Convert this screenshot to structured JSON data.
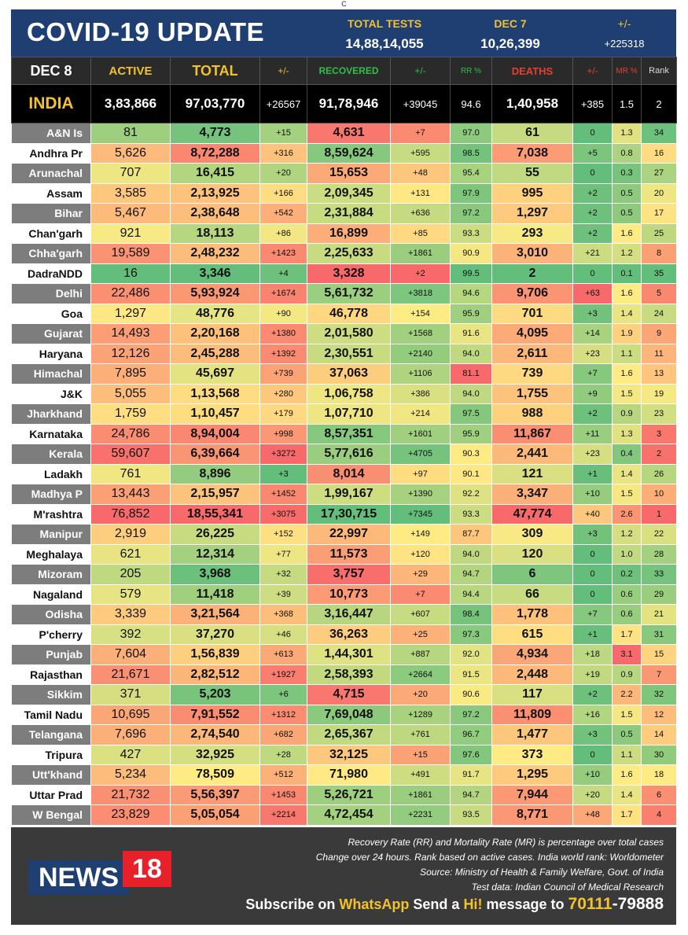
{
  "top_mark": "C",
  "banner": {
    "title": "COVID-19 UPDATE",
    "total_tests_label": "TOTAL TESTS",
    "total_tests_value": "14,88,14,055",
    "prev_date_label": "DEC 7",
    "prev_date_value": "10,26,399",
    "change_label": "+/-",
    "change_value": "+225318"
  },
  "header": {
    "date": "DEC 8",
    "active": "ACTIVE",
    "total": "TOTAL",
    "total_change": "+/-",
    "recovered": "RECOVERED",
    "recovered_change": "+/-",
    "rr": "RR %",
    "deaths": "DEATHS",
    "deaths_change": "+/-",
    "mr": "MR %",
    "rank": "Rank"
  },
  "india": {
    "name": "INDIA",
    "active": "3,83,866",
    "total": "97,03,770",
    "total_change": "+26567",
    "recovered": "91,78,946",
    "recovered_change": "+39045",
    "rr": "94.6",
    "deaths": "1,40,958",
    "deaths_change": "+385",
    "mr": "1.5",
    "rank": "2"
  },
  "states": [
    {
      "name": "A&N Is",
      "active": "81",
      "total": "4,773",
      "tc": "+15",
      "rec": "4,631",
      "rc": "+7",
      "rr": "97.0",
      "deaths": "61",
      "dc": "0",
      "mr": "1.3",
      "rank": "34"
    },
    {
      "name": "Andhra Pr",
      "active": "5,626",
      "total": "8,72,288",
      "tc": "+316",
      "rec": "8,59,624",
      "rc": "+595",
      "rr": "98.5",
      "deaths": "7,038",
      "dc": "+5",
      "mr": "0.8",
      "rank": "16"
    },
    {
      "name": "Arunachal",
      "active": "707",
      "total": "16,415",
      "tc": "+20",
      "rec": "15,653",
      "rc": "+48",
      "rr": "95.4",
      "deaths": "55",
      "dc": "0",
      "mr": "0.3",
      "rank": "27"
    },
    {
      "name": "Assam",
      "active": "3,585",
      "total": "2,13,925",
      "tc": "+166",
      "rec": "2,09,345",
      "rc": "+131",
      "rr": "97.9",
      "deaths": "995",
      "dc": "+2",
      "mr": "0.5",
      "rank": "20"
    },
    {
      "name": "Bihar",
      "active": "5,467",
      "total": "2,38,648",
      "tc": "+542",
      "rec": "2,31,884",
      "rc": "+636",
      "rr": "97.2",
      "deaths": "1,297",
      "dc": "+2",
      "mr": "0.5",
      "rank": "17"
    },
    {
      "name": "Chan'garh",
      "active": "921",
      "total": "18,113",
      "tc": "+86",
      "rec": "16,899",
      "rc": "+85",
      "rr": "93.3",
      "deaths": "293",
      "dc": "+2",
      "mr": "1.6",
      "rank": "25"
    },
    {
      "name": "Chha'garh",
      "active": "19,589",
      "total": "2,48,232",
      "tc": "+1423",
      "rec": "2,25,633",
      "rc": "+1861",
      "rr": "90.9",
      "deaths": "3,010",
      "dc": "+21",
      "mr": "1.2",
      "rank": "8"
    },
    {
      "name": "DadraNDD",
      "active": "16",
      "total": "3,346",
      "tc": "+4",
      "rec": "3,328",
      "rc": "+2",
      "rr": "99.5",
      "deaths": "2",
      "dc": "0",
      "mr": "0.1",
      "rank": "35"
    },
    {
      "name": "Delhi",
      "active": "22,486",
      "total": "5,93,924",
      "tc": "+1674",
      "rec": "5,61,732",
      "rc": "+3818",
      "rr": "94.6",
      "deaths": "9,706",
      "dc": "+63",
      "mr": "1.6",
      "rank": "5"
    },
    {
      "name": "Goa",
      "active": "1,297",
      "total": "48,776",
      "tc": "+90",
      "rec": "46,778",
      "rc": "+154",
      "rr": "95.9",
      "deaths": "701",
      "dc": "+3",
      "mr": "1.4",
      "rank": "24"
    },
    {
      "name": "Gujarat",
      "active": "14,493",
      "total": "2,20,168",
      "tc": "+1380",
      "rec": "2,01,580",
      "rc": "+1568",
      "rr": "91.6",
      "deaths": "4,095",
      "dc": "+14",
      "mr": "1.9",
      "rank": "9"
    },
    {
      "name": "Haryana",
      "active": "12,126",
      "total": "2,45,288",
      "tc": "+1392",
      "rec": "2,30,551",
      "rc": "+2140",
      "rr": "94.0",
      "deaths": "2,611",
      "dc": "+23",
      "mr": "1.1",
      "rank": "11"
    },
    {
      "name": "Himachal",
      "active": "7,895",
      "total": "45,697",
      "tc": "+739",
      "rec": "37,063",
      "rc": "+1106",
      "rr": "81.1",
      "deaths": "739",
      "dc": "+7",
      "mr": "1.6",
      "rank": "13"
    },
    {
      "name": "J&K",
      "active": "5,055",
      "total": "1,13,568",
      "tc": "+280",
      "rec": "1,06,758",
      "rc": "+386",
      "rr": "94.0",
      "deaths": "1,755",
      "dc": "+9",
      "mr": "1.5",
      "rank": "19"
    },
    {
      "name": "Jharkhand",
      "active": "1,759",
      "total": "1,10,457",
      "tc": "+179",
      "rec": "1,07,710",
      "rc": "+214",
      "rr": "97.5",
      "deaths": "988",
      "dc": "+2",
      "mr": "0.9",
      "rank": "23"
    },
    {
      "name": "Karnataka",
      "active": "24,786",
      "total": "8,94,004",
      "tc": "+998",
      "rec": "8,57,351",
      "rc": "+1601",
      "rr": "95.9",
      "deaths": "11,867",
      "dc": "+11",
      "mr": "1.3",
      "rank": "3"
    },
    {
      "name": "Kerala",
      "active": "59,607",
      "total": "6,39,664",
      "tc": "+3272",
      "rec": "5,77,616",
      "rc": "+4705",
      "rr": "90.3",
      "deaths": "2,441",
      "dc": "+23",
      "mr": "0.4",
      "rank": "2"
    },
    {
      "name": "Ladakh",
      "active": "761",
      "total": "8,896",
      "tc": "+3",
      "rec": "8,014",
      "rc": "+97",
      "rr": "90.1",
      "deaths": "121",
      "dc": "+1",
      "mr": "1.4",
      "rank": "26"
    },
    {
      "name": "Madhya P",
      "active": "13,443",
      "total": "2,15,957",
      "tc": "+1452",
      "rec": "1,99,167",
      "rc": "+1390",
      "rr": "92.2",
      "deaths": "3,347",
      "dc": "+10",
      "mr": "1.5",
      "rank": "10"
    },
    {
      "name": "M'rashtra",
      "active": "76,852",
      "total": "18,55,341",
      "tc": "+3075",
      "rec": "17,30,715",
      "rc": "+7345",
      "rr": "93.3",
      "deaths": "47,774",
      "dc": "+40",
      "mr": "2.6",
      "rank": "1"
    },
    {
      "name": "Manipur",
      "active": "2,919",
      "total": "26,225",
      "tc": "+152",
      "rec": "22,997",
      "rc": "+149",
      "rr": "87.7",
      "deaths": "309",
      "dc": "+3",
      "mr": "1.2",
      "rank": "22"
    },
    {
      "name": "Meghalaya",
      "active": "621",
      "total": "12,314",
      "tc": "+77",
      "rec": "11,573",
      "rc": "+120",
      "rr": "94.0",
      "deaths": "120",
      "dc": "0",
      "mr": "1.0",
      "rank": "28"
    },
    {
      "name": "Mizoram",
      "active": "205",
      "total": "3,968",
      "tc": "+32",
      "rec": "3,757",
      "rc": "+29",
      "rr": "94.7",
      "deaths": "6",
      "dc": "0",
      "mr": "0.2",
      "rank": "33"
    },
    {
      "name": "Nagaland",
      "active": "579",
      "total": "11,418",
      "tc": "+39",
      "rec": "10,773",
      "rc": "+7",
      "rr": "94.4",
      "deaths": "66",
      "dc": "0",
      "mr": "0.6",
      "rank": "29"
    },
    {
      "name": "Odisha",
      "active": "3,339",
      "total": "3,21,564",
      "tc": "+368",
      "rec": "3,16,447",
      "rc": "+607",
      "rr": "98.4",
      "deaths": "1,778",
      "dc": "+7",
      "mr": "0.6",
      "rank": "21"
    },
    {
      "name": "P'cherry",
      "active": "392",
      "total": "37,270",
      "tc": "+46",
      "rec": "36,263",
      "rc": "+25",
      "rr": "97.3",
      "deaths": "615",
      "dc": "+1",
      "mr": "1.7",
      "rank": "31"
    },
    {
      "name": "Punjab",
      "active": "7,604",
      "total": "1,56,839",
      "tc": "+613",
      "rec": "1,44,301",
      "rc": "+887",
      "rr": "92.0",
      "deaths": "4,934",
      "dc": "+18",
      "mr": "3.1",
      "rank": "15"
    },
    {
      "name": "Rajasthan",
      "active": "21,671",
      "total": "2,82,512",
      "tc": "+1927",
      "rec": "2,58,393",
      "rc": "+2664",
      "rr": "91.5",
      "deaths": "2,448",
      "dc": "+19",
      "mr": "0.9",
      "rank": "7"
    },
    {
      "name": "Sikkim",
      "active": "371",
      "total": "5,203",
      "tc": "+6",
      "rec": "4,715",
      "rc": "+20",
      "rr": "90.6",
      "deaths": "117",
      "dc": "+2",
      "mr": "2.2",
      "rank": "32"
    },
    {
      "name": "Tamil Nadu",
      "active": "10,695",
      "total": "7,91,552",
      "tc": "+1312",
      "rec": "7,69,048",
      "rc": "+1289",
      "rr": "97.2",
      "deaths": "11,809",
      "dc": "+16",
      "mr": "1.5",
      "rank": "12"
    },
    {
      "name": "Telangana",
      "active": "7,696",
      "total": "2,74,540",
      "tc": "+682",
      "rec": "2,65,367",
      "rc": "+761",
      "rr": "96.7",
      "deaths": "1,477",
      "dc": "+3",
      "mr": "0.5",
      "rank": "14"
    },
    {
      "name": "Tripura",
      "active": "427",
      "total": "32,925",
      "tc": "+28",
      "rec": "32,125",
      "rc": "+15",
      "rr": "97.6",
      "deaths": "373",
      "dc": "0",
      "mr": "1.1",
      "rank": "30"
    },
    {
      "name": "Utt'khand",
      "active": "5,234",
      "total": "78,509",
      "tc": "+512",
      "rec": "71,980",
      "rc": "+491",
      "rr": "91.7",
      "deaths": "1,295",
      "dc": "+10",
      "mr": "1.6",
      "rank": "18"
    },
    {
      "name": "Uttar Prad",
      "active": "21,732",
      "total": "5,56,397",
      "tc": "+1453",
      "rec": "5,26,721",
      "rc": "+1861",
      "rr": "94.7",
      "deaths": "7,944",
      "dc": "+20",
      "mr": "1.4",
      "rank": "6"
    },
    {
      "name": "W Bengal",
      "active": "23,829",
      "total": "5,05,054",
      "tc": "+2214",
      "rec": "4,72,454",
      "rc": "+2231",
      "rr": "93.5",
      "deaths": "8,771",
      "dc": "+48",
      "mr": "1.7",
      "rank": "4"
    }
  ],
  "footer": {
    "notes": [
      "Recovery Rate (RR) and Mortality Rate (MR) is percentage over total cases",
      "Change over 24 hours. Rank based on active cases. India world rank: Worldometer",
      "Source: Ministry of Health & Family Welfare, Govt. of India",
      "Test data: Indian Council of Medical Research"
    ],
    "logo_text": "NEWS",
    "logo_number": "18",
    "subscribe_prefix": "Subscribe on",
    "subscribe_app": "WhatsApp",
    "subscribe_mid": "Send a",
    "subscribe_word": "Hi!",
    "subscribe_suffix": "message to",
    "phone_part1": "70111",
    "phone_part2": "-79888"
  },
  "colors": {
    "banner_bg": "#1f3f73",
    "accent_yellow": "#f2c12e",
    "recovered_green": "#2fbf4a",
    "deaths_red": "#e2412e",
    "logo_red": "#e8202a"
  }
}
